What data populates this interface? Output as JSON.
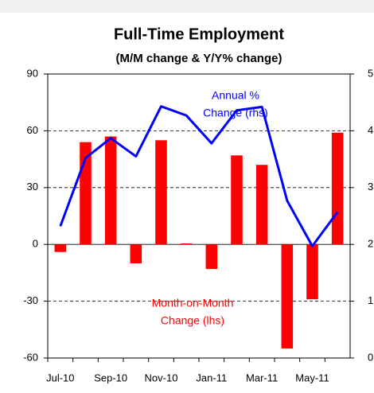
{
  "chart_data": {
    "type": "bar",
    "title": "Full-Time Employment",
    "subtitle": "(M/M change & Y/Y% change)",
    "categories": [
      "Jul-10",
      null,
      "Sep-10",
      null,
      "Nov-10",
      null,
      "Jan-11",
      null,
      "Mar-11",
      null,
      "May-11",
      null
    ],
    "series": [
      {
        "type": "bar",
        "color": "#ff0000",
        "values": [
          -4,
          54,
          57,
          -10,
          55,
          0.5,
          -13,
          47,
          42,
          -55,
          -29,
          59
        ]
      },
      {
        "type": "line",
        "axis": "y2",
        "color": "#0000ff",
        "values": [
          2.32,
          3.52,
          3.87,
          3.55,
          4.43,
          4.27,
          3.78,
          4.36,
          4.42,
          2.77,
          1.97,
          2.57
        ]
      }
    ],
    "ylim": [
      -60,
      90
    ],
    "yticks": [
      -60,
      -30,
      0,
      30,
      60,
      90
    ],
    "y2lim": [
      0,
      5
    ],
    "y2ticks": [
      0,
      1,
      2,
      3,
      4,
      5
    ],
    "grid": true,
    "annotations": [
      {
        "lines": [
          "Annual %",
          "Change (rhs)"
        ],
        "color": "#0000ff"
      },
      {
        "lines": [
          "Month-on-Month",
          "Change (lhs)"
        ],
        "color": "#ff0000"
      }
    ]
  }
}
